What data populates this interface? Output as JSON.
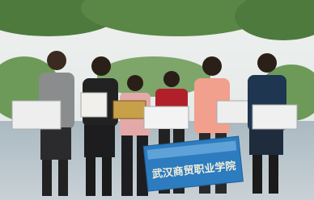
{
  "banner": {
    "title": "武汉商贸职业学院"
  }
}
